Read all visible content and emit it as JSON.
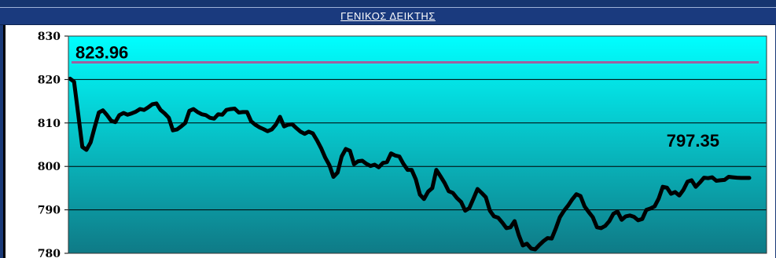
{
  "header": {
    "title": "ΓΕΝΙΚΟΣ  ΔΕΙΚΤΗΣ"
  },
  "colors": {
    "frame": "#1a3a7e",
    "plot_top": "#00ffff",
    "plot_bottom": "#0f7a86",
    "series_line": "#000000",
    "reference_line": "#a060a0"
  },
  "chart_data": {
    "type": "line",
    "title": "ΓΕΝΙΚΟΣ  ΔΕΙΚΤΗΣ",
    "xlabel": "",
    "ylabel": "",
    "ylim": [
      780,
      830
    ],
    "yticks": [
      "830",
      "820",
      "810",
      "800",
      "790",
      "780"
    ],
    "grid": "horizontal",
    "reference_line": {
      "value": 823.96,
      "label": "823.96"
    },
    "last_value_label": "797.35",
    "series": [
      {
        "values": [
          820.2,
          819.5,
          812.0,
          804.5,
          803.8,
          805.5,
          809.0,
          812.4,
          812.9,
          811.8,
          810.5,
          810.2,
          811.8,
          812.3,
          811.9,
          812.2,
          812.6,
          813.2,
          813.0,
          813.6,
          814.3,
          814.5,
          813.0,
          812.2,
          811.2,
          808.3,
          808.5,
          809.2,
          810.0,
          812.8,
          813.2,
          812.5,
          812.0,
          811.8,
          811.2,
          811.0,
          812.0,
          811.9,
          813.0,
          813.2,
          813.3,
          812.4,
          812.5,
          812.5,
          810.4,
          809.6,
          809.0,
          808.6,
          808.1,
          808.5,
          809.6,
          811.4,
          809.2,
          809.6,
          809.7,
          808.8,
          808.0,
          807.5,
          808.0,
          807.6,
          806.0,
          804.2,
          802.0,
          800.3,
          797.6,
          798.6,
          802.3,
          804.0,
          803.6,
          800.5,
          801.2,
          801.3,
          800.6,
          800.1,
          800.4,
          799.8,
          800.8,
          801.0,
          803.0,
          802.5,
          802.3,
          800.6,
          799.2,
          799.2,
          797.0,
          793.5,
          792.5,
          794.2,
          795.0,
          799.2,
          797.7,
          796.2,
          794.3,
          793.9,
          792.7,
          791.8,
          789.8,
          790.4,
          792.6,
          794.8,
          793.9,
          792.9,
          789.8,
          788.5,
          788.2,
          787.1,
          785.8,
          786.0,
          787.4,
          784.2,
          781.8,
          782.2,
          781.1,
          780.9,
          781.9,
          782.8,
          783.5,
          783.4,
          785.7,
          788.3,
          789.8,
          791.0,
          792.4,
          793.6,
          793.2,
          790.8,
          789.5,
          788.3,
          786.0,
          785.8,
          786.3,
          787.4,
          789.1,
          789.6,
          787.7,
          788.5,
          788.7,
          788.4,
          787.6,
          787.9,
          790.0,
          790.3,
          790.8,
          792.6,
          795.3,
          795.1,
          793.7,
          794.1,
          793.3,
          794.6,
          796.5,
          796.8,
          795.3,
          796.3,
          797.4,
          797.3,
          797.5,
          796.7,
          796.8,
          796.9,
          797.6,
          797.5,
          797.4,
          797.35,
          797.35,
          797.35
        ]
      }
    ]
  }
}
